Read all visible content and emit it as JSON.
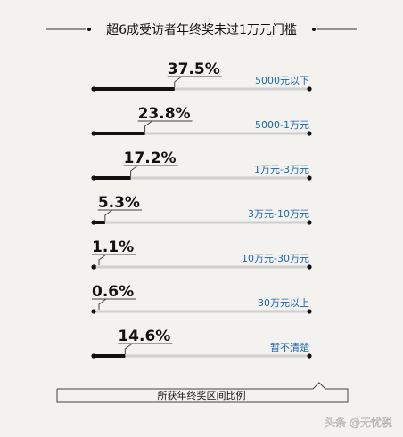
{
  "chart_data": {
    "type": "bar",
    "title": "超6成受访者年终奖未过1万元门槛",
    "xlabel": "所获年终奖区间比例",
    "unit": "%",
    "xlim": [
      0,
      100
    ],
    "categories": [
      "5000元以下",
      "5000-1万元",
      "1万元-3万元",
      "3万元-10万元",
      "10万元-30万元",
      "30万元以上",
      "暂不清楚"
    ],
    "values": [
      37.5,
      23.8,
      17.2,
      5.3,
      1.1,
      0.6,
      14.6
    ],
    "labels": [
      "37.5%",
      "23.8%",
      "17.2%",
      "5.3%",
      "1.1%",
      "0.6%",
      "14.6%"
    ]
  },
  "watermark": "头条 @无忧税",
  "colors": {
    "background": "#f3f2ee",
    "bar_fill": "#111111",
    "track": "#cfcfcf",
    "category_text": "#1a66b3"
  }
}
